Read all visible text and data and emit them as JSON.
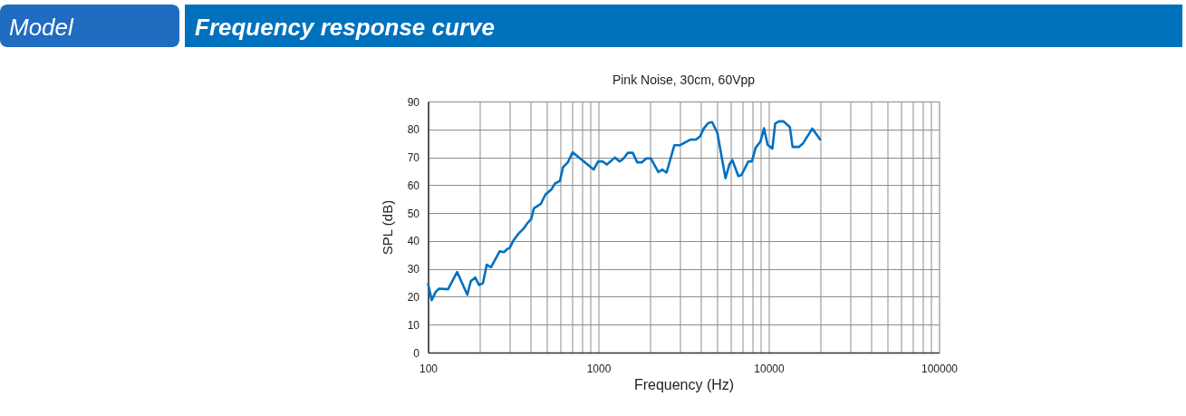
{
  "chart_data": {
    "type": "line",
    "title": "Frequency response curve",
    "subtitle": "Pink Noise, 30cm, 60Vpp",
    "xlabel": "Frequency (Hz)",
    "ylabel": "SPL (dB)",
    "annotations": [
      "Model"
    ],
    "x": [
      100,
      105,
      111,
      116,
      131,
      148,
      170,
      178,
      189,
      199,
      210,
      221,
      234,
      263,
      279,
      291,
      301,
      318,
      338,
      362,
      382,
      403,
      418,
      459,
      488,
      530,
      556,
      594,
      619,
      663,
      705,
      937,
      996,
      1060,
      1120,
      1250,
      1330,
      1390,
      1490,
      1590,
      1690,
      1800,
      1910,
      2030,
      2250,
      2370,
      2510,
      2790,
      3000,
      3460,
      3750,
      3950,
      4150,
      4410,
      4650,
      4990,
      5570,
      5870,
      6110,
      6630,
      6900,
      7590,
      7960,
      8370,
      8930,
      9380,
      9840,
      10500,
      10900,
      11500,
      12200,
      13300,
      13800,
      15000,
      15900,
      18000,
      20000
    ],
    "series": [
      {
        "color": "#0070c0",
        "values": [
          24.6,
          18.8,
          21.8,
          22.9,
          22.7,
          28.9,
          20.7,
          25.6,
          26.9,
          24.2,
          24.9,
          31.5,
          30.6,
          36.3,
          36.0,
          37.1,
          37.5,
          40.3,
          42.5,
          44.3,
          46.3,
          47.9,
          51.7,
          53.3,
          56.6,
          58.5,
          60.6,
          61.5,
          66.4,
          68.3,
          71.8,
          65.6,
          68.5,
          68.5,
          67.4,
          69.9,
          68.5,
          69.3,
          71.6,
          71.6,
          68.2,
          68.2,
          69.6,
          69.6,
          64.7,
          65.6,
          64.5,
          74.3,
          74.3,
          76.3,
          76.4,
          77.5,
          80.3,
          82.3,
          82.6,
          78.8,
          62.5,
          67.4,
          69.0,
          63.3,
          63.6,
          68.5,
          68.5,
          73.4,
          75.6,
          80.4,
          74.5,
          73.1,
          82.1,
          82.9,
          82.9,
          80.8,
          73.7,
          73.7,
          75.0,
          80.3,
          76.4
        ]
      }
    ],
    "log": "x",
    "xlim": [
      100,
      100000
    ],
    "ylim": [
      0,
      90
    ],
    "xticks": [
      100,
      {
        "value": 200,
        "label": null
      },
      {
        "value": 300,
        "label": null
      },
      {
        "value": 400,
        "label": null
      },
      {
        "value": 500,
        "label": null
      },
      {
        "value": 600,
        "label": null
      },
      {
        "value": 700,
        "label": null
      },
      {
        "value": 800,
        "label": null
      },
      {
        "value": 900,
        "label": null
      },
      1000,
      {
        "value": 2000,
        "label": null
      },
      {
        "value": 3000,
        "label": null
      },
      {
        "value": 4000,
        "label": null
      },
      {
        "value": 5000,
        "label": null
      },
      {
        "value": 6000,
        "label": null
      },
      {
        "value": 7000,
        "label": null
      },
      {
        "value": 8000,
        "label": null
      },
      {
        "value": 9000,
        "label": null
      },
      10000,
      {
        "value": 20000,
        "label": null
      },
      {
        "value": 30000,
        "label": null
      },
      {
        "value": 40000,
        "label": null
      },
      {
        "value": 50000,
        "label": null
      },
      {
        "value": 60000,
        "label": null
      },
      {
        "value": 70000,
        "label": null
      },
      {
        "value": 80000,
        "label": null
      },
      {
        "value": 90000,
        "label": null
      },
      100000
    ],
    "yticks": [
      0,
      10,
      20,
      30,
      40,
      50,
      60,
      70,
      80,
      90
    ],
    "grid": true,
    "line_style": "solid"
  }
}
